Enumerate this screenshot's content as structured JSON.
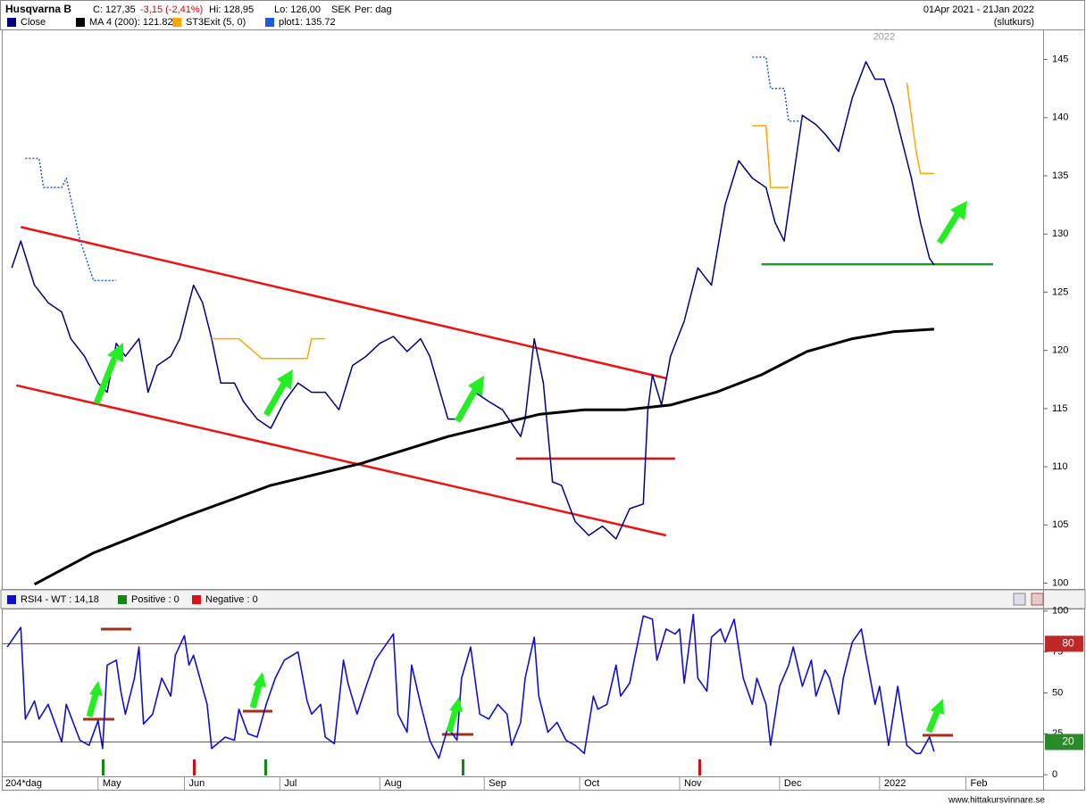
{
  "header": {
    "symbol": "Husqvarna B",
    "close": "C: 127,35",
    "change": "-3,15 (-2,41%)",
    "high": "Hi: 128,95",
    "low": "Lo: 126,00",
    "currency": "SEK",
    "period": "Per: dag",
    "range": "01Apr 2021 - 21Jan 2022",
    "price_type": "(slutkurs)"
  },
  "footer": "www.hittakursvinnare.se",
  "chart_data": [
    {
      "type": "line",
      "xlim": [
        -1,
        228
      ],
      "ylim": [
        99.5,
        147.5
      ],
      "yticks": [
        100,
        105,
        110,
        115,
        120,
        125,
        130,
        135,
        140,
        145
      ],
      "series": [
        {
          "name": "Close",
          "color": "#000080",
          "style": "solid",
          "x": [
            1,
            3,
            6,
            9,
            12,
            14,
            17,
            20,
            22,
            24,
            26,
            29,
            31,
            33,
            36,
            38,
            41,
            43,
            45,
            47,
            50,
            52,
            55,
            58,
            61,
            64,
            67,
            70,
            73,
            76,
            79,
            82,
            85,
            88,
            91,
            93,
            97,
            100,
            103,
            106,
            109,
            113,
            114,
            116,
            118,
            120,
            122,
            125,
            128,
            131,
            134,
            137,
            140,
            141,
            142,
            144,
            146,
            149,
            152,
            155,
            158,
            161,
            164,
            167,
            169,
            171,
            173,
            175,
            178,
            180,
            183,
            186,
            189,
            191,
            193,
            195,
            197,
            199,
            201,
            203,
            204
          ],
          "values": [
            127.1,
            129.4,
            125.6,
            124.1,
            123.3,
            121,
            119.5,
            117.2,
            116.4,
            120.6,
            119.5,
            121,
            116.4,
            118.7,
            119.5,
            121,
            125.6,
            124.1,
            121,
            117.2,
            117.2,
            115.6,
            114.1,
            113.3,
            115.6,
            117.2,
            116.4,
            116.4,
            114.9,
            118.7,
            119.5,
            120.6,
            121.2,
            119.9,
            121,
            119.5,
            114.1,
            114.1,
            116.4,
            115.6,
            114.9,
            112.6,
            114.1,
            121,
            117.2,
            108.7,
            108.4,
            105.3,
            104.1,
            104.9,
            103.8,
            106.4,
            106.8,
            114.9,
            117.9,
            115.3,
            119.5,
            122.5,
            127.1,
            125.6,
            132.5,
            136.3,
            134.8,
            134,
            131,
            129.4,
            134.8,
            140.2,
            139.4,
            138.6,
            137.1,
            141.7,
            144.8,
            143.3,
            143.3,
            141,
            137.9,
            134.8,
            131,
            127.9,
            127.35
          ]
        },
        {
          "name": "MA 4 (200): 121.82",
          "color": "#000000",
          "style": "thick",
          "x": [
            6,
            19,
            39,
            58,
            78,
            97,
            117,
            127,
            136,
            146,
            156,
            166,
            176,
            186,
            195,
            204
          ],
          "values": [
            99.9,
            102.6,
            105.7,
            108.4,
            110.3,
            112.6,
            114.5,
            114.9,
            114.9,
            115.3,
            116.4,
            117.9,
            119.9,
            121,
            121.6,
            121.82
          ]
        },
        {
          "name": "ST3Exit (5, 0)",
          "color": "#ffa500",
          "style": "solid",
          "x": [
            45,
            47,
            51,
            56,
            60,
            66,
            67,
            70,
            71,
            164,
            167,
            168,
            172,
            173,
            198,
            200,
            201,
            204
          ],
          "values": [
            121,
            121,
            121,
            119.3,
            119.3,
            119.3,
            121,
            121,
            null,
            139.3,
            139.3,
            134,
            134,
            null,
            143,
            137.2,
            135.2,
            135.2
          ]
        },
        {
          "name": "plot1: 135.72",
          "color": "#1e5adc",
          "style": "dotted",
          "x": [
            4,
            7,
            8,
            12,
            13,
            16,
            19,
            24,
            25,
            164,
            167,
            168,
            171,
            172,
            175
          ],
          "values": [
            136.5,
            136.5,
            134,
            134,
            134.8,
            129.5,
            126,
            126,
            null,
            145.2,
            145.2,
            142.5,
            142.5,
            139.7,
            139.7
          ]
        }
      ],
      "lines": [
        {
          "color": "#ee1111",
          "x": [
            3,
            145
          ],
          "values": [
            130.6,
            117.6
          ]
        },
        {
          "color": "#ee1111",
          "x": [
            2,
            145
          ],
          "values": [
            117,
            104.1
          ]
        },
        {
          "color": "#dd1111",
          "x": [
            112,
            147
          ],
          "values": [
            110.7,
            110.7
          ]
        },
        {
          "color": "#229922",
          "x": [
            166,
            217
          ],
          "values": [
            127.4,
            127.4
          ]
        }
      ],
      "annotations": [
        {
          "text": "2022",
          "x": 193,
          "y": 146.9
        }
      ]
    },
    {
      "type": "line",
      "x_label": "204*dag",
      "xlim": [
        -1,
        228
      ],
      "ylim": [
        -1,
        101.5
      ],
      "xticks": [
        {
          "value": 20,
          "label": "May"
        },
        {
          "value": 39,
          "label": "Jun"
        },
        {
          "value": 60,
          "label": "Jul"
        },
        {
          "value": 82,
          "label": "Aug"
        },
        {
          "value": 105,
          "label": "Sep"
        },
        {
          "value": 126,
          "label": "Oct"
        },
        {
          "value": 148,
          "label": "Nov"
        },
        {
          "value": 170,
          "label": "Dec"
        },
        {
          "value": 192,
          "label": "2022"
        },
        {
          "value": 211,
          "label": "Feb"
        }
      ],
      "yticks": [
        0,
        25,
        50,
        75,
        100
      ],
      "levels": [
        {
          "value": 80,
          "color": "#c02828"
        },
        {
          "value": 20,
          "color": "#2a8a2a"
        }
      ],
      "series": [
        {
          "name": "RSI4 - WT : 14,18",
          "color": "#1010cc",
          "style": "medium",
          "x": [
            0,
            3,
            4,
            6,
            7,
            9,
            12,
            13,
            16,
            18,
            20,
            21,
            22,
            24,
            25,
            26,
            28,
            29,
            30,
            32,
            34,
            36,
            37,
            39,
            40,
            41,
            44,
            45,
            48,
            50,
            51,
            53,
            55,
            57,
            59,
            61,
            64,
            66,
            67,
            69,
            70,
            72,
            74,
            75,
            77,
            79,
            81,
            83,
            85,
            86,
            88,
            89,
            91,
            93,
            95,
            97,
            99,
            100,
            102,
            104,
            106,
            108,
            110,
            111,
            113,
            114,
            116,
            117,
            119,
            121,
            123,
            125,
            127,
            129,
            130,
            132,
            134,
            135,
            137,
            138,
            140,
            142,
            143,
            145,
            147,
            148,
            149,
            151,
            152,
            154,
            155,
            157,
            158,
            160,
            162,
            164,
            165,
            167,
            168,
            170,
            172,
            173,
            175,
            177,
            178,
            180,
            181,
            183,
            184,
            186,
            188,
            189,
            191,
            192,
            194,
            196,
            198,
            200,
            201,
            203,
            204
          ],
          "values": [
            78,
            90,
            34,
            45,
            34,
            43,
            20,
            43,
            21,
            18,
            33,
            16,
            67,
            70,
            51,
            37,
            59,
            78,
            31,
            37,
            59,
            48,
            73,
            85,
            67,
            73,
            43,
            16,
            23,
            21,
            40,
            25,
            23,
            43,
            59,
            70,
            75,
            45,
            37,
            43,
            23,
            19,
            70,
            56,
            37,
            54,
            70,
            78,
            86,
            37,
            26,
            67,
            43,
            21,
            10,
            29,
            21,
            59,
            78,
            37,
            34,
            43,
            37,
            18,
            32,
            59,
            84,
            48,
            26,
            32,
            21,
            18,
            13,
            48,
            40,
            43,
            67,
            48,
            56,
            70,
            97,
            95,
            70,
            89,
            86,
            89,
            56,
            98,
            59,
            51,
            84,
            89,
            81,
            95,
            59,
            43,
            59,
            43,
            18,
            54,
            67,
            78,
            54,
            70,
            48,
            64,
            59,
            37,
            59,
            81,
            89,
            73,
            43,
            54,
            18,
            54,
            18,
            13,
            13,
            23,
            14.18
          ]
        }
      ],
      "indicators": [
        {
          "name": "Positive : 0",
          "color": "#118811"
        },
        {
          "name": "Negative : 0",
          "color": "#dd1111"
        }
      ]
    }
  ]
}
